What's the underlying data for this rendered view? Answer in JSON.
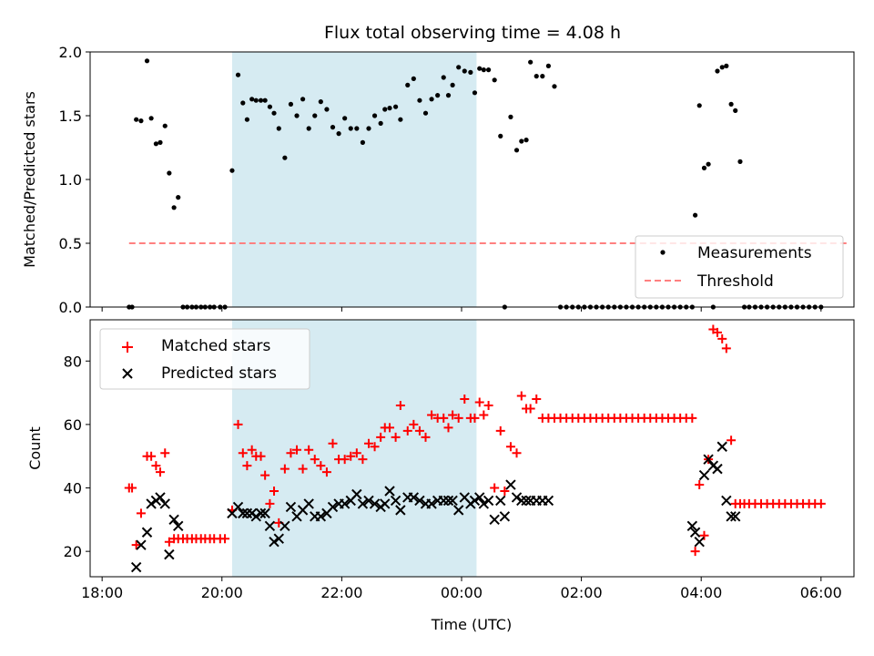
{
  "chart_data": {
    "title": "Flux total observing time = 4.08 h",
    "xlabel": "Time (UTC)",
    "x_ticks": [
      "18:00",
      "20:00",
      "22:00",
      "00:00",
      "02:00",
      "04:00",
      "06:00"
    ],
    "x_tick_hours": [
      18,
      20,
      22,
      24,
      26,
      28,
      30
    ],
    "xlim_hours": [
      17.8,
      30.55
    ],
    "shaded_interval_hours": [
      20.17,
      24.25
    ],
    "shade_color": "#add8e6",
    "panels": [
      {
        "type": "scatter",
        "ylabel": "Matched/Predicted stars",
        "ylim": [
          0,
          2.0
        ],
        "yticks": [
          "0.0",
          "0.5",
          "1.0",
          "1.5",
          "2.0"
        ],
        "ytick_values": [
          0,
          0.5,
          1.0,
          1.5,
          2.0
        ],
        "threshold": {
          "value": 0.5,
          "x_range_hours": [
            18.45,
            30.45
          ],
          "color": "#ff8080"
        },
        "legend": {
          "position": "lower right",
          "entries": [
            "Measurements",
            "Threshold"
          ]
        },
        "series": [
          {
            "name": "Measurements",
            "marker": "dot",
            "color": "#000000",
            "x": [
              18.45,
              18.5,
              18.57,
              18.65,
              18.75,
              18.82,
              18.9,
              18.97,
              19.05,
              19.12,
              19.2,
              19.27,
              19.35,
              19.42,
              19.5,
              19.57,
              19.65,
              19.72,
              19.8,
              19.87,
              19.97,
              20.05,
              20.17,
              20.27,
              20.35,
              20.42,
              20.5,
              20.57,
              20.65,
              20.72,
              20.8,
              20.87,
              20.95,
              21.05,
              21.15,
              21.25,
              21.35,
              21.45,
              21.55,
              21.65,
              21.75,
              21.85,
              21.95,
              22.05,
              22.15,
              22.25,
              22.35,
              22.45,
              22.55,
              22.65,
              22.72,
              22.8,
              22.9,
              22.98,
              23.1,
              23.2,
              23.3,
              23.4,
              23.5,
              23.6,
              23.7,
              23.78,
              23.85,
              23.95,
              24.05,
              24.15,
              24.22,
              24.3,
              24.37,
              24.45,
              24.55,
              24.65,
              24.72,
              24.82,
              24.92,
              25.0,
              25.08,
              25.15,
              25.25,
              25.35,
              25.45,
              25.55,
              25.65,
              25.75,
              25.85,
              25.95,
              26.05,
              26.15,
              26.25,
              26.35,
              26.45,
              26.55,
              26.65,
              26.75,
              26.85,
              26.95,
              27.05,
              27.15,
              27.25,
              27.35,
              27.45,
              27.55,
              27.65,
              27.75,
              27.85,
              27.9,
              27.97,
              28.05,
              28.12,
              28.2,
              28.27,
              28.35,
              28.42,
              28.5,
              28.57,
              28.65,
              28.72,
              28.8,
              28.9,
              29.0,
              29.1,
              29.2,
              29.3,
              29.4,
              29.5,
              29.6,
              29.7,
              29.8,
              29.9,
              30.0
            ],
            "y": [
              0.0,
              0.0,
              1.47,
              1.46,
              1.93,
              1.48,
              1.28,
              1.29,
              1.42,
              1.05,
              0.78,
              0.86,
              0.0,
              0.0,
              0.0,
              0.0,
              0.0,
              0.0,
              0.0,
              0.0,
              0.0,
              0.0,
              1.07,
              1.82,
              1.6,
              1.47,
              1.63,
              1.62,
              1.62,
              1.62,
              1.57,
              1.52,
              1.4,
              1.17,
              1.59,
              1.5,
              1.63,
              1.4,
              1.5,
              1.61,
              1.55,
              1.41,
              1.36,
              1.48,
              1.4,
              1.4,
              1.29,
              1.4,
              1.5,
              1.44,
              1.55,
              1.56,
              1.57,
              1.47,
              1.74,
              1.79,
              1.62,
              1.52,
              1.63,
              1.66,
              1.8,
              1.66,
              1.74,
              1.88,
              1.85,
              1.84,
              1.68,
              1.87,
              1.86,
              1.86,
              1.78,
              1.34,
              0.0,
              1.49,
              1.23,
              1.3,
              1.31,
              1.92,
              1.81,
              1.81,
              1.89,
              1.73,
              0.0,
              0.0,
              0.0,
              0.0,
              0.0,
              0.0,
              0.0,
              0.0,
              0.0,
              0.0,
              0.0,
              0.0,
              0.0,
              0.0,
              0.0,
              0.0,
              0.0,
              0.0,
              0.0,
              0.0,
              0.0,
              0.0,
              0.0,
              0.72,
              1.58,
              1.09,
              1.12,
              0.0,
              1.85,
              1.88,
              1.89,
              1.59,
              1.54,
              1.14,
              0.0,
              0.0,
              0.0,
              0.0,
              0.0,
              0.0,
              0.0,
              0.0,
              0.0,
              0.0,
              0.0,
              0.0,
              0.0,
              0.0
            ]
          }
        ]
      },
      {
        "type": "scatter",
        "ylabel": "Count",
        "ylim": [
          12,
          93
        ],
        "yticks": [
          "20",
          "40",
          "60",
          "80"
        ],
        "ytick_values": [
          20,
          40,
          60,
          80
        ],
        "legend": {
          "position": "upper left",
          "entries": [
            "Matched stars",
            "Predicted stars"
          ]
        },
        "series": [
          {
            "name": "Matched stars",
            "marker": "plus",
            "color": "#ff0000",
            "x": [
              18.45,
              18.5,
              18.57,
              18.65,
              18.75,
              18.82,
              18.9,
              18.97,
              19.05,
              19.12,
              19.2,
              19.27,
              19.35,
              19.42,
              19.5,
              19.57,
              19.65,
              19.72,
              19.8,
              19.87,
              19.97,
              20.05,
              20.17,
              20.27,
              20.35,
              20.42,
              20.5,
              20.57,
              20.65,
              20.72,
              20.8,
              20.87,
              20.95,
              21.05,
              21.15,
              21.25,
              21.35,
              21.45,
              21.55,
              21.65,
              21.75,
              21.85,
              21.95,
              22.05,
              22.15,
              22.25,
              22.35,
              22.45,
              22.55,
              22.65,
              22.72,
              22.8,
              22.9,
              22.98,
              23.1,
              23.2,
              23.3,
              23.4,
              23.5,
              23.6,
              23.7,
              23.78,
              23.85,
              23.95,
              24.05,
              24.15,
              24.22,
              24.3,
              24.37,
              24.45,
              24.55,
              24.65,
              24.72,
              24.82,
              24.92,
              25.0,
              25.08,
              25.15,
              25.25,
              25.35,
              25.45,
              25.55,
              25.65,
              25.75,
              25.85,
              25.95,
              26.05,
              26.15,
              26.25,
              26.35,
              26.45,
              26.55,
              26.65,
              26.75,
              26.85,
              26.95,
              27.05,
              27.15,
              27.25,
              27.35,
              27.45,
              27.55,
              27.65,
              27.75,
              27.85,
              27.9,
              27.97,
              28.05,
              28.12,
              28.2,
              28.27,
              28.35,
              28.42,
              28.5,
              28.57,
              28.65,
              28.72,
              28.8,
              28.9,
              29.0,
              29.1,
              29.2,
              29.3,
              29.4,
              29.5,
              29.6,
              29.7,
              29.8,
              29.9,
              30.0
            ],
            "y": [
              40,
              40,
              22,
              32,
              50,
              50,
              47,
              45,
              51,
              23,
              24,
              24,
              24,
              24,
              24,
              24,
              24,
              24,
              24,
              24,
              24,
              24,
              33,
              60,
              51,
              47,
              52,
              50,
              50,
              44,
              35,
              39,
              29,
              46,
              51,
              52,
              46,
              52,
              49,
              47,
              45,
              54,
              49,
              49,
              50,
              51,
              49,
              54,
              53,
              56,
              59,
              59,
              56,
              66,
              58,
              60,
              58,
              56,
              63,
              62,
              62,
              59,
              63,
              62,
              68,
              62,
              62,
              67,
              63,
              66,
              40,
              58,
              39,
              53,
              51,
              69,
              65,
              65,
              68,
              62,
              62,
              62,
              62,
              62,
              62,
              62,
              62,
              62,
              62,
              62,
              62,
              62,
              62,
              62,
              62,
              62,
              62,
              62,
              62,
              62,
              62,
              62,
              62,
              62,
              62,
              20,
              41,
              25,
              49,
              90,
              89,
              87,
              84,
              55,
              35,
              35,
              35,
              35,
              35,
              35,
              35,
              35,
              35,
              35,
              35,
              35,
              35,
              35,
              35,
              35
            ]
          },
          {
            "name": "Predicted stars",
            "marker": "x",
            "color": "#000000",
            "x": [
              18.57,
              18.65,
              18.75,
              18.82,
              18.9,
              18.97,
              19.05,
              19.12,
              19.2,
              19.27,
              20.17,
              20.27,
              20.35,
              20.42,
              20.5,
              20.57,
              20.65,
              20.72,
              20.8,
              20.87,
              20.95,
              21.05,
              21.15,
              21.25,
              21.35,
              21.45,
              21.55,
              21.65,
              21.75,
              21.85,
              21.95,
              22.05,
              22.15,
              22.25,
              22.35,
              22.45,
              22.55,
              22.65,
              22.72,
              22.8,
              22.9,
              22.98,
              23.1,
              23.2,
              23.3,
              23.4,
              23.5,
              23.6,
              23.7,
              23.78,
              23.85,
              23.95,
              24.05,
              24.15,
              24.22,
              24.3,
              24.37,
              24.45,
              24.55,
              24.65,
              24.72,
              24.82,
              24.92,
              25.0,
              25.08,
              25.15,
              25.25,
              25.35,
              25.45,
              27.85,
              27.9,
              27.97,
              28.05,
              28.12,
              28.2,
              28.27,
              28.35,
              28.42,
              28.5,
              28.57
            ],
            "y": [
              15,
              22,
              26,
              35,
              36,
              37,
              35,
              19,
              30,
              28,
              32,
              34,
              32,
              32,
              32,
              31,
              32,
              32,
              28,
              23,
              24,
              28,
              34,
              31,
              33,
              35,
              31,
              31,
              32,
              34,
              35,
              35,
              36,
              38,
              35,
              36,
              35,
              34,
              35,
              39,
              36,
              33,
              37,
              37,
              36,
              35,
              35,
              36,
              36,
              36,
              36,
              33,
              37,
              35,
              36,
              37,
              35,
              36,
              30,
              36,
              31,
              41,
              37,
              36,
              36,
              36,
              36,
              36,
              36,
              28,
              26,
              23,
              44,
              49,
              47,
              46,
              53,
              36,
              31,
              31
            ]
          }
        ]
      }
    ]
  }
}
